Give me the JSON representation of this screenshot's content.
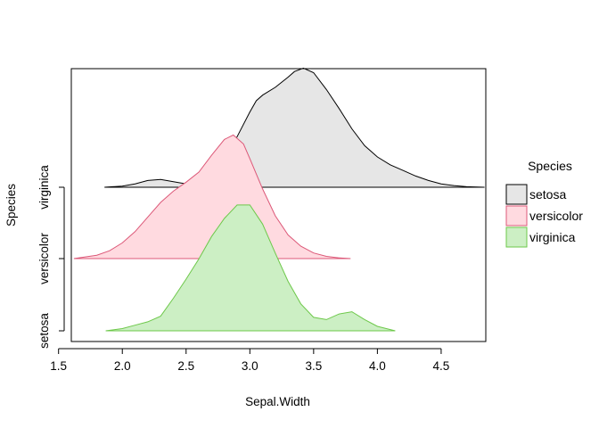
{
  "chart_data": {
    "type": "area",
    "subtype": "ridgeline-density",
    "title": "",
    "xlabel": "Sepal.Width",
    "ylabel": "Species",
    "xlim": [
      1.6,
      4.85
    ],
    "x_ticks": [
      "1.5",
      "2.0",
      "2.5",
      "3.0",
      "3.5",
      "4.0",
      "4.5"
    ],
    "y_categories": [
      "setosa",
      "versicolor",
      "virginica"
    ],
    "legend": {
      "title": "Species",
      "position": "right",
      "entries": [
        "setosa",
        "versicolor",
        "virginica"
      ]
    },
    "series": [
      {
        "name": "setosa",
        "baseline_category": "virginica",
        "fill": "#e6e6e6",
        "stroke": "#000000",
        "x": [
          1.86,
          2.0,
          2.1,
          2.2,
          2.3,
          2.4,
          2.5,
          2.6,
          2.7,
          2.8,
          2.9,
          3.0,
          3.05,
          3.1,
          3.2,
          3.3,
          3.35,
          3.42,
          3.5,
          3.6,
          3.7,
          3.8,
          3.9,
          4.0,
          4.1,
          4.2,
          4.3,
          4.4,
          4.5,
          4.6,
          4.7,
          4.84
        ],
        "y": [
          0.0,
          0.01,
          0.03,
          0.06,
          0.07,
          0.05,
          0.03,
          0.04,
          0.09,
          0.24,
          0.45,
          0.67,
          0.77,
          0.82,
          0.89,
          0.98,
          1.03,
          1.06,
          1.02,
          0.87,
          0.7,
          0.52,
          0.37,
          0.27,
          0.2,
          0.15,
          0.1,
          0.06,
          0.03,
          0.015,
          0.005,
          0.0
        ]
      },
      {
        "name": "versicolor",
        "baseline_category": "versicolor",
        "fill": "#ffdae0",
        "stroke": "#dc5878",
        "x": [
          1.62,
          1.8,
          1.9,
          2.0,
          2.1,
          2.2,
          2.3,
          2.4,
          2.5,
          2.6,
          2.7,
          2.8,
          2.87,
          2.95,
          3.0,
          3.1,
          3.2,
          3.3,
          3.4,
          3.5,
          3.6,
          3.7,
          3.79
        ],
        "y": [
          0.0,
          0.03,
          0.07,
          0.14,
          0.24,
          0.37,
          0.5,
          0.6,
          0.68,
          0.77,
          0.92,
          1.06,
          1.1,
          1.02,
          0.89,
          0.62,
          0.38,
          0.21,
          0.11,
          0.05,
          0.02,
          0.006,
          0.0
        ]
      },
      {
        "name": "virginica",
        "baseline_category": "setosa",
        "fill": "#ccefc4",
        "stroke": "#6dc84a",
        "x": [
          1.87,
          2.0,
          2.1,
          2.2,
          2.3,
          2.4,
          2.5,
          2.6,
          2.7,
          2.8,
          2.9,
          3.0,
          3.1,
          3.2,
          3.3,
          3.4,
          3.5,
          3.6,
          3.7,
          3.8,
          3.9,
          4.0,
          4.14
        ],
        "y": [
          0.0,
          0.02,
          0.05,
          0.08,
          0.13,
          0.29,
          0.46,
          0.64,
          0.84,
          1.0,
          1.12,
          1.12,
          0.95,
          0.69,
          0.44,
          0.24,
          0.12,
          0.1,
          0.15,
          0.17,
          0.1,
          0.04,
          0.0
        ]
      }
    ]
  }
}
